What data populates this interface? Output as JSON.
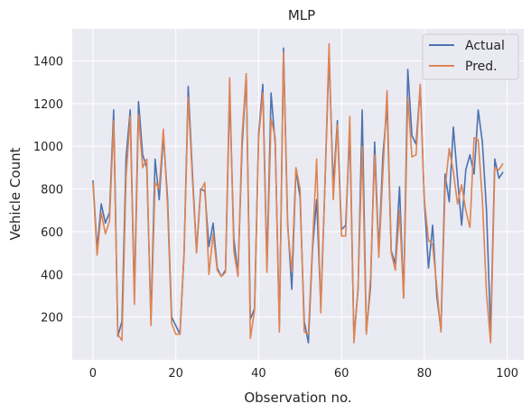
{
  "chart_data": {
    "type": "line",
    "title": "MLP",
    "xlabel": "Observation no.",
    "ylabel": "Vehicle Count",
    "xlim": [
      -5,
      104
    ],
    "ylim": [
      0,
      1550
    ],
    "xticks": [
      0,
      20,
      40,
      60,
      80,
      100
    ],
    "yticks": [
      200,
      400,
      600,
      800,
      1000,
      1200,
      1400
    ],
    "grid": true,
    "legend_position": "top-right",
    "background": "#eaeaf2",
    "series": [
      {
        "name": "Actual",
        "color": "#4c72b0",
        "values": [
          840,
          520,
          730,
          640,
          690,
          1170,
          110,
          180,
          950,
          1170,
          300,
          1210,
          960,
          900,
          190,
          940,
          750,
          1050,
          760,
          200,
          160,
          120,
          500,
          1280,
          880,
          510,
          800,
          790,
          530,
          640,
          430,
          390,
          420,
          1250,
          570,
          400,
          1000,
          1330,
          190,
          240,
          1060,
          1290,
          440,
          1250,
          1010,
          160,
          1460,
          640,
          330,
          890,
          760,
          180,
          80,
          520,
          750,
          250,
          820,
          1430,
          810,
          1120,
          610,
          630,
          1070,
          100,
          330,
          1170,
          130,
          340,
          1020,
          500,
          960,
          1190,
          510,
          450,
          810,
          290,
          1360,
          1050,
          1010,
          1280,
          740,
          430,
          630,
          300,
          140,
          870,
          740,
          1090,
          850,
          630,
          890,
          960,
          870,
          1170,
          1020,
          700,
          130,
          940,
          850,
          880
        ]
      },
      {
        "name": "Pred.",
        "color": "#dd8452",
        "values": [
          830,
          490,
          690,
          590,
          650,
          1120,
          120,
          90,
          860,
          1140,
          260,
          1150,
          900,
          940,
          160,
          830,
          800,
          1080,
          720,
          170,
          120,
          120,
          500,
          1230,
          850,
          500,
          790,
          830,
          400,
          590,
          420,
          390,
          410,
          1320,
          510,
          390,
          1050,
          1340,
          100,
          230,
          1040,
          1250,
          410,
          1130,
          1040,
          130,
          1440,
          620,
          410,
          900,
          800,
          130,
          120,
          540,
          940,
          220,
          820,
          1480,
          750,
          1100,
          580,
          580,
          1140,
          80,
          340,
          1000,
          120,
          380,
          960,
          480,
          880,
          1260,
          500,
          420,
          700,
          290,
          1230,
          950,
          960,
          1290,
          750,
          560,
          540,
          340,
          130,
          800,
          990,
          880,
          730,
          820,
          700,
          620,
          1040,
          1030,
          750,
          310,
          80,
          900,
          890,
          920
        ]
      }
    ]
  }
}
